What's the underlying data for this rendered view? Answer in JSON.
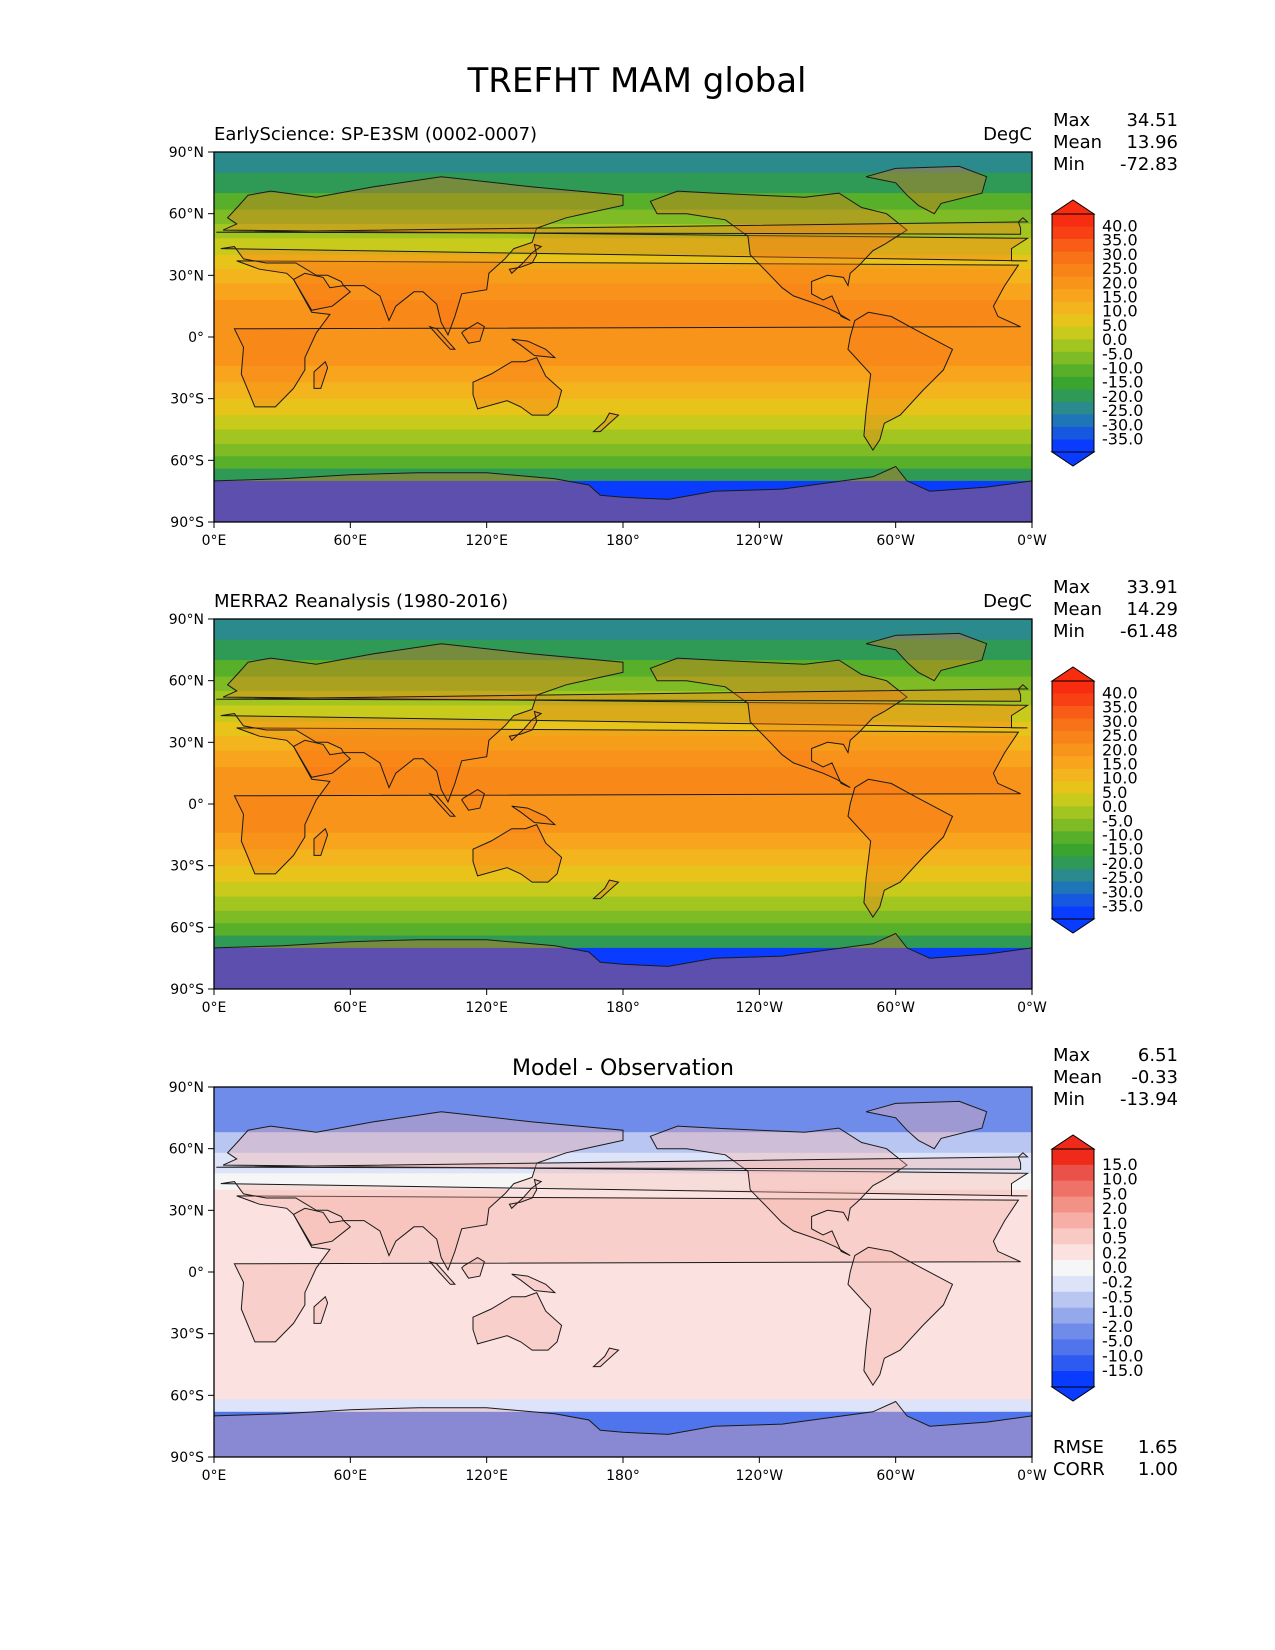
{
  "figure": {
    "title": "TREFHT MAM global"
  },
  "colors": {
    "abs_scale": [
      "#0a3cff",
      "#1659e0",
      "#1e75b8",
      "#2a8a8c",
      "#2f9a55",
      "#3aa52e",
      "#58b02a",
      "#7fbb24",
      "#a3c51f",
      "#c8ca1c",
      "#e8c31a",
      "#f4b41d",
      "#f8a41d",
      "#f8941a",
      "#f88319",
      "#f87218",
      "#f85c16",
      "#f84014",
      "#f82c10"
    ],
    "diff_scale": [
      "#0a3cff",
      "#2d5af0",
      "#4f74ec",
      "#6f8ceb",
      "#94a9ec",
      "#b9c6f2",
      "#dde3f8",
      "#f6f6f6",
      "#fbe1df",
      "#f9c9c4",
      "#f6aea6",
      "#f29186",
      "#ee7267",
      "#ea5249",
      "#f02a1a"
    ]
  },
  "chart_data": [
    {
      "type": "heatmap",
      "title": "EarlyScience: SP-E3SM (0002-0007)",
      "units": "DegC",
      "stats": {
        "max_label": "Max",
        "max": "34.51",
        "mean_label": "Mean",
        "mean": "13.96",
        "min_label": "Min",
        "min": "-72.83"
      },
      "x_ticks": [
        "0°E",
        "60°E",
        "120°E",
        "180°",
        "120°W",
        "60°W",
        "0°W"
      ],
      "y_ticks": [
        "90°N",
        "60°N",
        "30°N",
        "0°",
        "30°S",
        "60°S",
        "90°S"
      ],
      "xlim": [
        0,
        360
      ],
      "ylim": [
        -90,
        90
      ],
      "colorbar_levels": [
        "40.0",
        "35.0",
        "30.0",
        "25.0",
        "20.0",
        "15.0",
        "10.0",
        "5.0",
        "0.0",
        "-5.0",
        "-10.0",
        "-15.0",
        "-20.0",
        "-25.0",
        "-30.0",
        "-35.0"
      ]
    },
    {
      "type": "heatmap",
      "title": "MERRA2 Reanalysis (1980-2016)",
      "units": "DegC",
      "stats": {
        "max_label": "Max",
        "max": "33.91",
        "mean_label": "Mean",
        "mean": "14.29",
        "min_label": "Min",
        "min": "-61.48"
      },
      "x_ticks": [
        "0°E",
        "60°E",
        "120°E",
        "180°",
        "120°W",
        "60°W",
        "0°W"
      ],
      "y_ticks": [
        "90°N",
        "60°N",
        "30°N",
        "0°",
        "30°S",
        "60°S",
        "90°S"
      ],
      "xlim": [
        0,
        360
      ],
      "ylim": [
        -90,
        90
      ],
      "colorbar_levels": [
        "40.0",
        "35.0",
        "30.0",
        "25.0",
        "20.0",
        "15.0",
        "10.0",
        "5.0",
        "0.0",
        "-5.0",
        "-10.0",
        "-15.0",
        "-20.0",
        "-25.0",
        "-30.0",
        "-35.0"
      ]
    },
    {
      "type": "heatmap",
      "title": "Model - Observation",
      "units": "",
      "stats": {
        "max_label": "Max",
        "max": "6.51",
        "mean_label": "Mean",
        "mean": "-0.33",
        "min_label": "Min",
        "min": "-13.94"
      },
      "metrics": {
        "rmse_label": "RMSE",
        "rmse": "1.65",
        "corr_label": "CORR",
        "corr": "1.00"
      },
      "x_ticks": [
        "0°E",
        "60°E",
        "120°E",
        "180°",
        "120°W",
        "60°W",
        "0°W"
      ],
      "y_ticks": [
        "90°N",
        "60°N",
        "30°N",
        "0°",
        "30°S",
        "60°S",
        "90°S"
      ],
      "xlim": [
        0,
        360
      ],
      "ylim": [
        -90,
        90
      ],
      "colorbar_levels": [
        "15.0",
        "10.0",
        "5.0",
        "2.0",
        "1.0",
        "0.5",
        "0.2",
        "0.0",
        "-0.2",
        "-0.5",
        "-1.0",
        "-2.0",
        "-5.0",
        "-10.0",
        "-15.0"
      ]
    }
  ]
}
